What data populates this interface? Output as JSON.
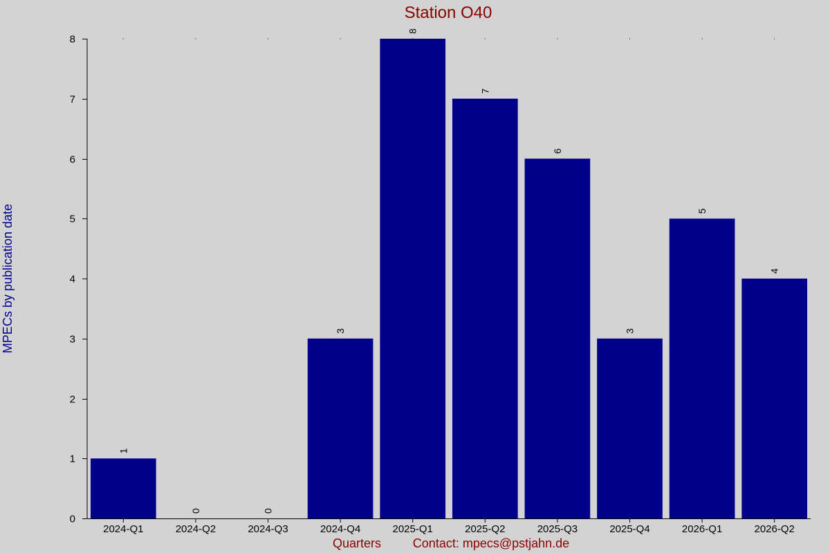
{
  "chart_data": {
    "type": "bar",
    "title": "Station O40",
    "xlabel": "Quarters",
    "ylabel": "MPECs by publication date",
    "footer_contact": "Contact: mpecs@pstjahn.de",
    "categories": [
      "2024-Q1",
      "2024-Q2",
      "2024-Q3",
      "2024-Q4",
      "2025-Q1",
      "2025-Q2",
      "2025-Q3",
      "2025-Q4",
      "2026-Q1",
      "2026-Q2"
    ],
    "values": [
      1,
      0,
      0,
      3,
      8,
      7,
      6,
      3,
      5,
      4
    ],
    "value_labels": [
      "1",
      "0",
      "0",
      "3",
      "8",
      "7",
      "6",
      "3",
      "5",
      "4"
    ],
    "y_ticks": [
      0,
      1,
      2,
      3,
      4,
      5,
      6,
      7,
      8
    ],
    "y_tick_labels": [
      "0",
      "1",
      "2",
      "3",
      "4",
      "5",
      "6",
      "7",
      "8"
    ],
    "ylim": [
      0,
      8
    ],
    "grid": false,
    "legend": "none",
    "colors": {
      "background": "#d3d3d3",
      "bar": "#00008b",
      "title": "#8b0000",
      "ylabel": "#00008b",
      "xlabel": "#8b0000",
      "axis": "#000000",
      "text": "#000000"
    }
  }
}
